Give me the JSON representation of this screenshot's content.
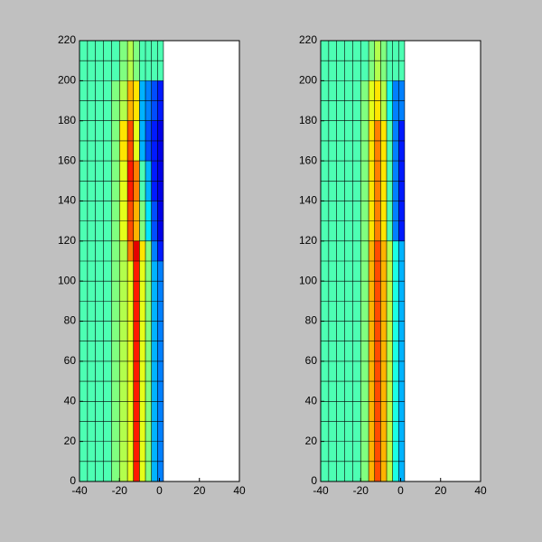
{
  "chart_data": [
    {
      "type": "mesh",
      "colormap": "jet",
      "xlim": [
        -40,
        40
      ],
      "ylim": [
        0,
        220
      ],
      "xticks": [
        -40,
        -20,
        0,
        20,
        40
      ],
      "yticks": [
        0,
        20,
        40,
        60,
        80,
        100,
        120,
        140,
        160,
        180,
        200,
        220
      ],
      "x_edges": [
        -40,
        -36,
        -32,
        -28,
        -24,
        -20,
        -16,
        -13,
        -10,
        -7,
        -4,
        -1,
        2
      ],
      "y_edges": [
        0,
        10,
        20,
        30,
        40,
        50,
        60,
        70,
        80,
        90,
        100,
        110,
        120,
        130,
        140,
        150,
        160,
        170,
        180,
        190,
        200,
        210,
        220
      ],
      "values": [
        [
          0.45,
          0.45,
          0.45,
          0.45,
          0.5,
          0.55,
          0.6,
          0.85,
          0.6,
          0.5,
          0.3,
          0.25
        ],
        [
          0.45,
          0.45,
          0.45,
          0.45,
          0.5,
          0.55,
          0.6,
          0.85,
          0.6,
          0.5,
          0.3,
          0.25
        ],
        [
          0.45,
          0.45,
          0.45,
          0.45,
          0.5,
          0.55,
          0.6,
          0.85,
          0.6,
          0.5,
          0.3,
          0.25
        ],
        [
          0.45,
          0.45,
          0.45,
          0.45,
          0.5,
          0.55,
          0.6,
          0.85,
          0.6,
          0.5,
          0.3,
          0.25
        ],
        [
          0.45,
          0.45,
          0.45,
          0.45,
          0.5,
          0.55,
          0.6,
          0.85,
          0.6,
          0.5,
          0.3,
          0.25
        ],
        [
          0.45,
          0.45,
          0.45,
          0.45,
          0.5,
          0.55,
          0.6,
          0.85,
          0.6,
          0.5,
          0.3,
          0.25
        ],
        [
          0.45,
          0.45,
          0.45,
          0.45,
          0.5,
          0.55,
          0.6,
          0.85,
          0.6,
          0.5,
          0.3,
          0.25
        ],
        [
          0.45,
          0.45,
          0.45,
          0.45,
          0.5,
          0.55,
          0.6,
          0.85,
          0.6,
          0.5,
          0.3,
          0.25
        ],
        [
          0.45,
          0.45,
          0.45,
          0.45,
          0.5,
          0.55,
          0.6,
          0.85,
          0.6,
          0.5,
          0.3,
          0.25
        ],
        [
          0.45,
          0.45,
          0.45,
          0.45,
          0.5,
          0.55,
          0.6,
          0.85,
          0.6,
          0.5,
          0.3,
          0.25
        ],
        [
          0.45,
          0.45,
          0.45,
          0.45,
          0.5,
          0.55,
          0.6,
          0.85,
          0.6,
          0.5,
          0.3,
          0.25
        ],
        [
          0.45,
          0.45,
          0.45,
          0.45,
          0.5,
          0.55,
          0.75,
          0.9,
          0.65,
          0.5,
          0.25,
          0.15
        ],
        [
          0.45,
          0.45,
          0.45,
          0.45,
          0.5,
          0.6,
          0.8,
          0.7,
          0.5,
          0.35,
          0.2,
          0.1
        ],
        [
          0.45,
          0.45,
          0.45,
          0.45,
          0.5,
          0.6,
          0.8,
          0.7,
          0.5,
          0.35,
          0.2,
          0.1
        ],
        [
          0.45,
          0.45,
          0.45,
          0.45,
          0.5,
          0.6,
          0.85,
          0.75,
          0.45,
          0.3,
          0.15,
          0.1
        ],
        [
          0.45,
          0.45,
          0.45,
          0.45,
          0.5,
          0.6,
          0.85,
          0.75,
          0.45,
          0.3,
          0.15,
          0.1
        ],
        [
          0.45,
          0.45,
          0.45,
          0.45,
          0.5,
          0.65,
          0.8,
          0.6,
          0.3,
          0.2,
          0.15,
          0.1
        ],
        [
          0.45,
          0.45,
          0.45,
          0.45,
          0.5,
          0.65,
          0.8,
          0.6,
          0.3,
          0.2,
          0.15,
          0.1
        ],
        [
          0.45,
          0.45,
          0.45,
          0.45,
          0.5,
          0.55,
          0.7,
          0.65,
          0.3,
          0.25,
          0.2,
          0.15
        ],
        [
          0.45,
          0.45,
          0.45,
          0.45,
          0.5,
          0.55,
          0.7,
          0.65,
          0.3,
          0.25,
          0.2,
          0.15
        ],
        [
          0.45,
          0.45,
          0.45,
          0.45,
          0.45,
          0.5,
          0.55,
          0.5,
          0.45,
          0.45,
          0.45,
          0.45
        ],
        [
          0.45,
          0.45,
          0.45,
          0.45,
          0.45,
          0.5,
          0.55,
          0.5,
          0.45,
          0.45,
          0.45,
          0.45
        ]
      ]
    },
    {
      "type": "mesh",
      "colormap": "jet",
      "xlim": [
        -40,
        40
      ],
      "ylim": [
        0,
        220
      ],
      "xticks": [
        -40,
        -20,
        0,
        20,
        40
      ],
      "yticks": [
        0,
        20,
        40,
        60,
        80,
        100,
        120,
        140,
        160,
        180,
        200,
        220
      ],
      "x_edges": [
        -40,
        -36,
        -32,
        -28,
        -24,
        -20,
        -16,
        -13,
        -10,
        -7,
        -4,
        -1,
        2
      ],
      "y_edges": [
        0,
        10,
        20,
        30,
        40,
        50,
        60,
        70,
        80,
        90,
        100,
        110,
        120,
        130,
        140,
        150,
        160,
        170,
        180,
        190,
        200,
        210,
        220
      ],
      "values": [
        [
          0.45,
          0.45,
          0.45,
          0.45,
          0.45,
          0.5,
          0.7,
          0.8,
          0.7,
          0.55,
          0.4,
          0.3
        ],
        [
          0.45,
          0.45,
          0.45,
          0.45,
          0.45,
          0.5,
          0.7,
          0.8,
          0.7,
          0.55,
          0.4,
          0.3
        ],
        [
          0.45,
          0.45,
          0.45,
          0.45,
          0.45,
          0.5,
          0.7,
          0.8,
          0.7,
          0.55,
          0.4,
          0.3
        ],
        [
          0.45,
          0.45,
          0.45,
          0.45,
          0.45,
          0.5,
          0.7,
          0.8,
          0.7,
          0.55,
          0.4,
          0.3
        ],
        [
          0.45,
          0.45,
          0.45,
          0.45,
          0.45,
          0.5,
          0.7,
          0.8,
          0.7,
          0.55,
          0.4,
          0.3
        ],
        [
          0.45,
          0.45,
          0.45,
          0.45,
          0.45,
          0.5,
          0.7,
          0.8,
          0.7,
          0.55,
          0.4,
          0.3
        ],
        [
          0.45,
          0.45,
          0.45,
          0.45,
          0.45,
          0.5,
          0.7,
          0.8,
          0.7,
          0.55,
          0.4,
          0.3
        ],
        [
          0.45,
          0.45,
          0.45,
          0.45,
          0.45,
          0.5,
          0.7,
          0.8,
          0.7,
          0.55,
          0.4,
          0.3
        ],
        [
          0.45,
          0.45,
          0.45,
          0.45,
          0.45,
          0.5,
          0.7,
          0.8,
          0.7,
          0.55,
          0.4,
          0.3
        ],
        [
          0.45,
          0.45,
          0.45,
          0.45,
          0.45,
          0.5,
          0.7,
          0.8,
          0.7,
          0.55,
          0.4,
          0.3
        ],
        [
          0.45,
          0.45,
          0.45,
          0.45,
          0.45,
          0.5,
          0.7,
          0.8,
          0.7,
          0.55,
          0.4,
          0.3
        ],
        [
          0.45,
          0.45,
          0.45,
          0.45,
          0.45,
          0.5,
          0.7,
          0.8,
          0.7,
          0.55,
          0.4,
          0.3
        ],
        [
          0.45,
          0.45,
          0.45,
          0.45,
          0.45,
          0.5,
          0.65,
          0.75,
          0.65,
          0.45,
          0.25,
          0.15
        ],
        [
          0.45,
          0.45,
          0.45,
          0.45,
          0.45,
          0.5,
          0.65,
          0.75,
          0.65,
          0.45,
          0.25,
          0.15
        ],
        [
          0.45,
          0.45,
          0.45,
          0.45,
          0.45,
          0.5,
          0.65,
          0.75,
          0.65,
          0.45,
          0.25,
          0.15
        ],
        [
          0.45,
          0.45,
          0.45,
          0.45,
          0.45,
          0.5,
          0.65,
          0.75,
          0.65,
          0.45,
          0.25,
          0.15
        ],
        [
          0.45,
          0.45,
          0.45,
          0.45,
          0.45,
          0.5,
          0.65,
          0.75,
          0.65,
          0.45,
          0.25,
          0.15
        ],
        [
          0.45,
          0.45,
          0.45,
          0.45,
          0.45,
          0.5,
          0.65,
          0.75,
          0.65,
          0.45,
          0.25,
          0.15
        ],
        [
          0.45,
          0.45,
          0.45,
          0.45,
          0.45,
          0.5,
          0.6,
          0.65,
          0.55,
          0.4,
          0.25,
          0.25
        ],
        [
          0.45,
          0.45,
          0.45,
          0.45,
          0.45,
          0.5,
          0.6,
          0.65,
          0.55,
          0.4,
          0.25,
          0.25
        ],
        [
          0.45,
          0.45,
          0.45,
          0.45,
          0.45,
          0.45,
          0.5,
          0.55,
          0.5,
          0.45,
          0.45,
          0.45
        ],
        [
          0.45,
          0.45,
          0.45,
          0.45,
          0.45,
          0.45,
          0.5,
          0.55,
          0.5,
          0.45,
          0.45,
          0.45
        ]
      ]
    }
  ]
}
